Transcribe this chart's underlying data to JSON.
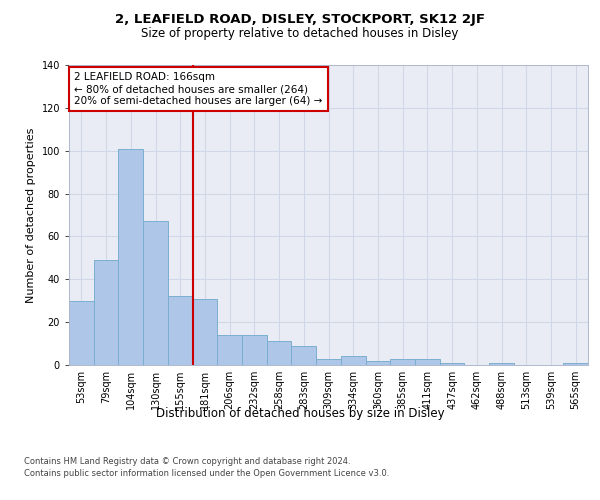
{
  "title_top": "2, LEAFIELD ROAD, DISLEY, STOCKPORT, SK12 2JF",
  "title_sub": "Size of property relative to detached houses in Disley",
  "xlabel": "Distribution of detached houses by size in Disley",
  "ylabel": "Number of detached properties",
  "categories": [
    "53sqm",
    "79sqm",
    "104sqm",
    "130sqm",
    "155sqm",
    "181sqm",
    "206sqm",
    "232sqm",
    "258sqm",
    "283sqm",
    "309sqm",
    "334sqm",
    "360sqm",
    "385sqm",
    "411sqm",
    "437sqm",
    "462sqm",
    "488sqm",
    "513sqm",
    "539sqm",
    "565sqm"
  ],
  "values": [
    30,
    49,
    101,
    67,
    32,
    31,
    14,
    14,
    11,
    9,
    3,
    4,
    2,
    3,
    3,
    1,
    0,
    1,
    0,
    0,
    1
  ],
  "bar_color": "#aec6e8",
  "bar_edgecolor": "#7aaed0",
  "vline_x": 4.5,
  "vline_color": "#cc0000",
  "annotation_box_text": "2 LEAFIELD ROAD: 166sqm\n← 80% of detached houses are smaller (264)\n20% of semi-detached houses are larger (64) →",
  "annotation_box_color": "#cc0000",
  "ylim": [
    0,
    140
  ],
  "yticks": [
    0,
    20,
    40,
    60,
    80,
    100,
    120,
    140
  ],
  "grid_color": "#d0d8e8",
  "bg_color": "#eaecf5",
  "footer": "Contains HM Land Registry data © Crown copyright and database right 2024.\nContains public sector information licensed under the Open Government Licence v3.0.",
  "title_fontsize": 9.5,
  "subtitle_fontsize": 8.5,
  "xlabel_fontsize": 8.5,
  "ylabel_fontsize": 8,
  "tick_fontsize": 7,
  "annotation_fontsize": 7.5,
  "footer_fontsize": 6
}
